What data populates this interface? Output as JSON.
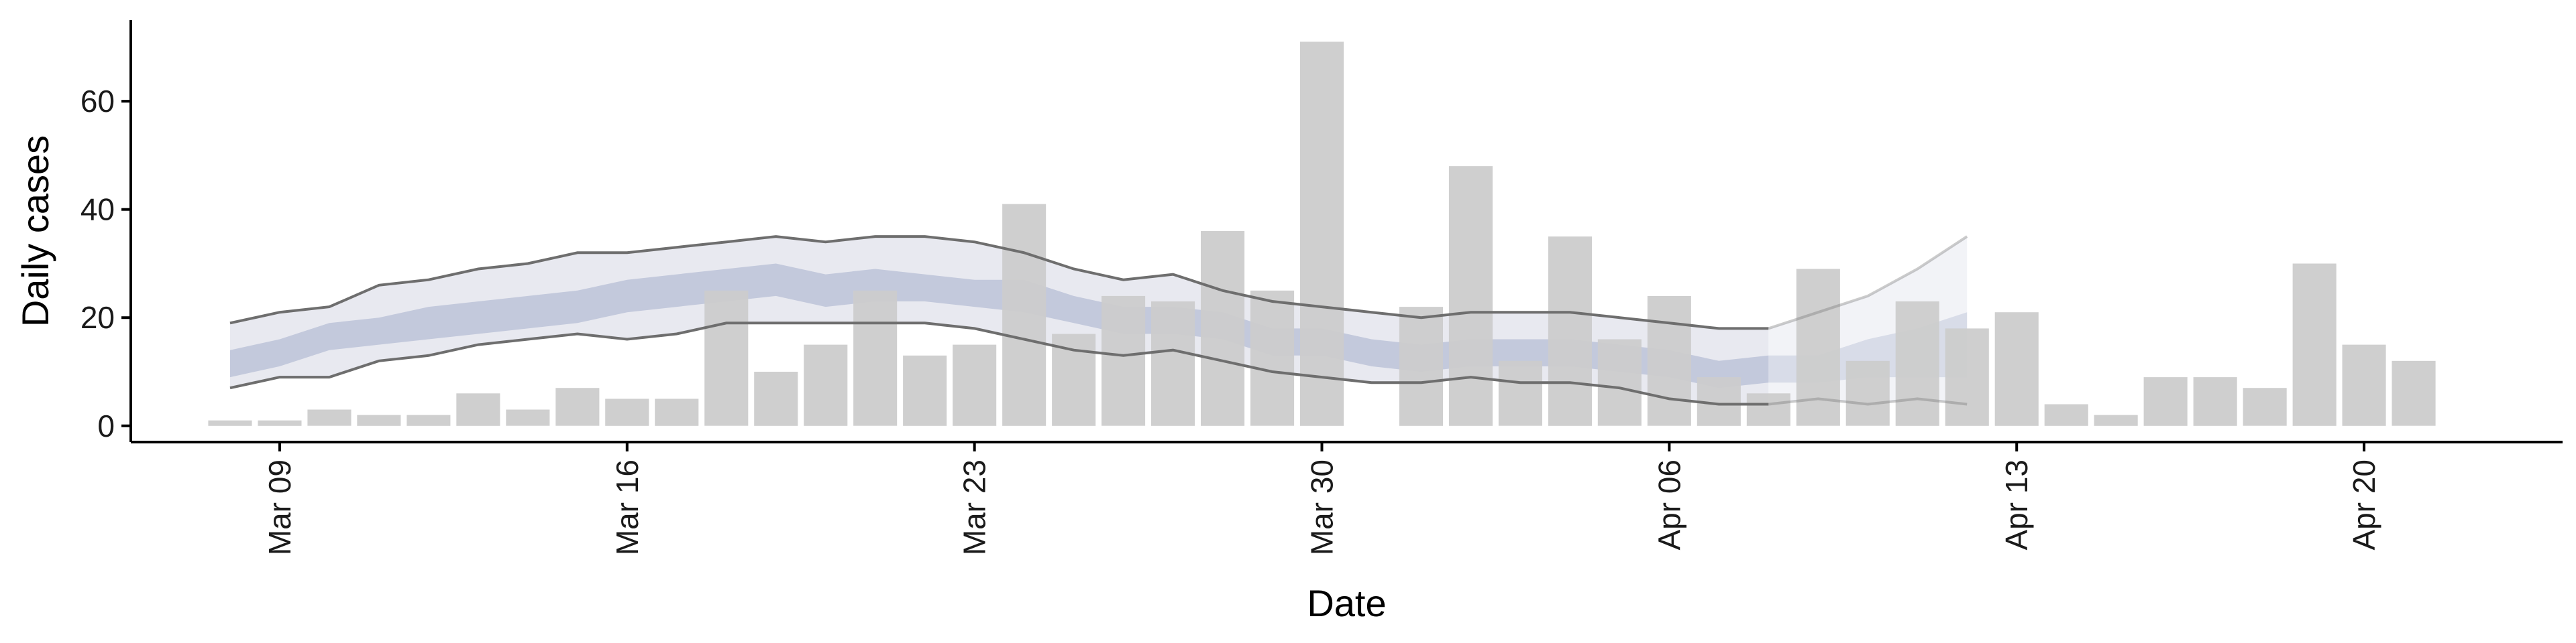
{
  "chart_data": {
    "type": "bar",
    "xlabel": "Date",
    "ylabel": "Daily cases",
    "ylim": [
      -3,
      75
    ],
    "yticks": [
      0,
      20,
      40,
      60
    ],
    "x_tick_labels": [
      {
        "date": "2020-03-09",
        "label": "Mar 09"
      },
      {
        "date": "2020-03-16",
        "label": "Mar 16"
      },
      {
        "date": "2020-03-23",
        "label": "Mar 23"
      },
      {
        "date": "2020-03-30",
        "label": "Mar 30"
      },
      {
        "date": "2020-04-06",
        "label": "Apr 06"
      },
      {
        "date": "2020-04-13",
        "label": "Apr 13"
      },
      {
        "date": "2020-04-20",
        "label": "Apr 20"
      }
    ],
    "xlim": [
      "2020-03-06",
      "2020-04-24"
    ],
    "grid": false,
    "colors": {
      "bars": "#cccccc",
      "outer_band": "#e8e9f0",
      "inner_band": "#c3c9dc",
      "bound_line": "#6e6e6e"
    },
    "bars": {
      "dates": [
        "2020-03-08",
        "2020-03-09",
        "2020-03-10",
        "2020-03-11",
        "2020-03-12",
        "2020-03-13",
        "2020-03-14",
        "2020-03-15",
        "2020-03-16",
        "2020-03-17",
        "2020-03-18",
        "2020-03-19",
        "2020-03-20",
        "2020-03-21",
        "2020-03-22",
        "2020-03-23",
        "2020-03-24",
        "2020-03-25",
        "2020-03-26",
        "2020-03-27",
        "2020-03-28",
        "2020-03-29",
        "2020-03-30",
        "2020-03-31",
        "2020-04-01",
        "2020-04-02",
        "2020-04-03",
        "2020-04-04",
        "2020-04-05",
        "2020-04-06",
        "2020-04-07",
        "2020-04-08",
        "2020-04-09",
        "2020-04-10",
        "2020-04-11",
        "2020-04-12",
        "2020-04-13",
        "2020-04-14",
        "2020-04-15",
        "2020-04-16",
        "2020-04-17",
        "2020-04-18",
        "2020-04-19",
        "2020-04-20",
        "2020-04-21"
      ],
      "values": [
        1,
        1,
        3,
        2,
        2,
        6,
        3,
        7,
        5,
        5,
        25,
        10,
        15,
        25,
        13,
        15,
        41,
        17,
        24,
        23,
        36,
        25,
        71,
        0,
        22,
        48,
        12,
        35,
        16,
        24,
        9,
        6,
        29,
        12,
        23,
        18,
        21,
        4,
        2,
        9,
        9,
        7,
        30,
        15,
        12
      ]
    },
    "bands": {
      "dates": [
        "2020-03-08",
        "2020-03-09",
        "2020-03-10",
        "2020-03-11",
        "2020-03-12",
        "2020-03-13",
        "2020-03-14",
        "2020-03-15",
        "2020-03-16",
        "2020-03-17",
        "2020-03-18",
        "2020-03-19",
        "2020-03-20",
        "2020-03-21",
        "2020-03-22",
        "2020-03-23",
        "2020-03-24",
        "2020-03-25",
        "2020-03-26",
        "2020-03-27",
        "2020-03-28",
        "2020-03-29",
        "2020-03-30",
        "2020-03-31",
        "2020-04-01",
        "2020-04-02",
        "2020-04-03",
        "2020-04-04",
        "2020-04-05",
        "2020-04-06",
        "2020-04-07",
        "2020-04-08",
        "2020-04-09",
        "2020-04-10",
        "2020-04-11",
        "2020-04-12"
      ],
      "outer_upper": [
        19,
        21,
        22,
        26,
        27,
        29,
        30,
        32,
        32,
        33,
        34,
        35,
        34,
        35,
        35,
        34,
        32,
        29,
        27,
        28,
        25,
        23,
        22,
        21,
        20,
        21,
        21,
        21,
        20,
        19,
        18,
        18,
        21,
        24,
        29,
        35
      ],
      "outer_lower": [
        7,
        9,
        9,
        12,
        13,
        15,
        16,
        17,
        16,
        17,
        19,
        19,
        19,
        19,
        19,
        18,
        16,
        14,
        13,
        14,
        12,
        10,
        9,
        8,
        8,
        9,
        8,
        8,
        7,
        5,
        4,
        4,
        5,
        4,
        5,
        4
      ],
      "inner_upper": [
        14,
        16,
        19,
        20,
        22,
        23,
        24,
        25,
        27,
        28,
        29,
        30,
        28,
        29,
        28,
        27,
        27,
        24,
        22,
        22,
        21,
        18,
        18,
        16,
        15,
        16,
        16,
        16,
        15,
        14,
        12,
        13,
        13,
        16,
        18,
        21
      ],
      "inner_lower": [
        9,
        11,
        14,
        15,
        16,
        17,
        18,
        19,
        21,
        22,
        23,
        24,
        22,
        23,
        23,
        22,
        21,
        19,
        17,
        17,
        16,
        13,
        13,
        11,
        10,
        11,
        11,
        11,
        10,
        9,
        7,
        8,
        8,
        9,
        9,
        9
      ],
      "faded_from": "2020-04-08"
    }
  }
}
